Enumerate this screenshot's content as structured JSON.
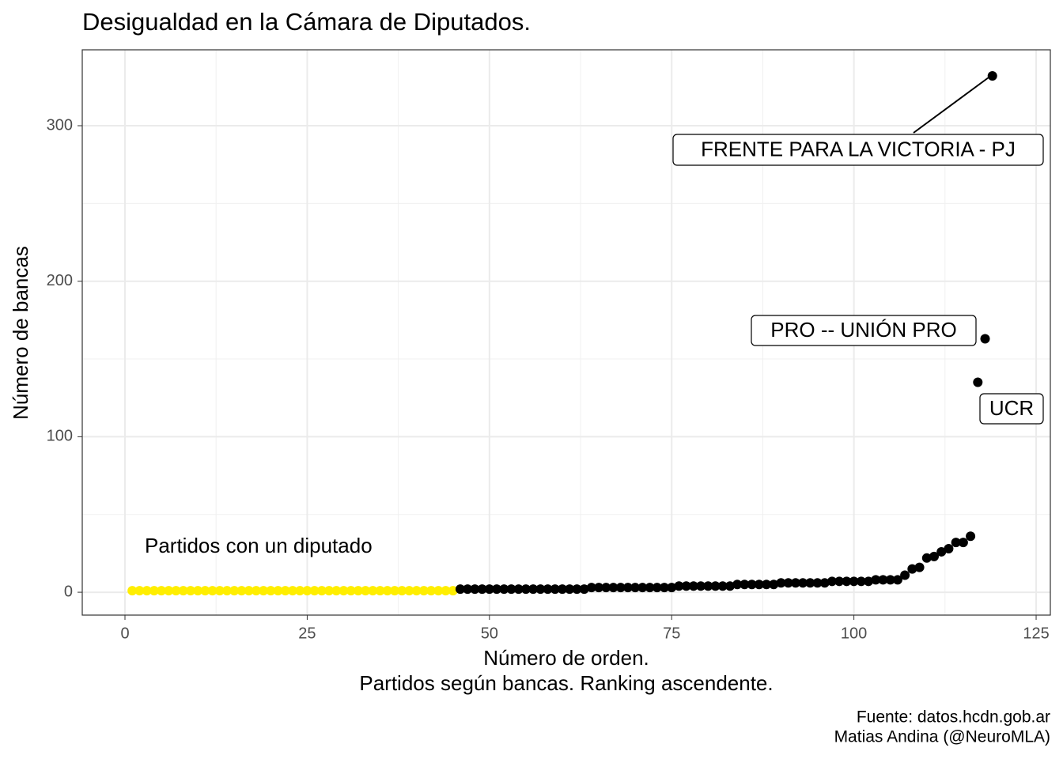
{
  "chart_data": {
    "type": "scatter",
    "title": "Desigualdad en la Cámara de Diputados.",
    "x_label": [
      "Número de orden.",
      "Partidos según bancas. Ranking ascendente."
    ],
    "y_label": "Número de bancas",
    "caption": [
      "Fuente: datos.hcdn.gob.ar",
      "Matias Andina (@NeuroMLA)"
    ],
    "annotations": [
      "FRENTE PARA LA VICTORIA - PJ",
      "PRO -- UNIÓN PRO",
      "UCR",
      "Partidos con un diputado"
    ],
    "grid": true,
    "xlim": [
      -5.86,
      126.95
    ],
    "ylim": [
      -14.7,
      348.8
    ],
    "xticks": [
      0,
      25,
      50,
      75,
      100,
      125
    ],
    "yticks": [
      0,
      100,
      200,
      300
    ],
    "series": [
      {
        "color": "#FFEE00",
        "x": [
          1,
          2,
          3,
          4,
          5,
          6,
          7,
          8,
          9,
          10,
          11,
          12,
          13,
          14,
          15,
          16,
          17,
          18,
          19,
          20,
          21,
          22,
          23,
          24,
          25,
          26,
          27,
          28,
          29,
          30,
          31,
          32,
          33,
          34,
          35,
          36,
          37,
          38,
          39,
          40,
          41,
          42,
          43,
          44,
          45
        ],
        "values": [
          1,
          1,
          1,
          1,
          1,
          1,
          1,
          1,
          1,
          1,
          1,
          1,
          1,
          1,
          1,
          1,
          1,
          1,
          1,
          1,
          1,
          1,
          1,
          1,
          1,
          1,
          1,
          1,
          1,
          1,
          1,
          1,
          1,
          1,
          1,
          1,
          1,
          1,
          1,
          1,
          1,
          1,
          1,
          1,
          1
        ]
      },
      {
        "color": "#000000",
        "x": [
          46,
          47,
          48,
          49,
          50,
          51,
          52,
          53,
          54,
          55,
          56,
          57,
          58,
          59,
          60,
          61,
          62,
          63,
          64,
          65,
          66,
          67,
          68,
          69,
          70,
          71,
          72,
          73,
          74,
          75,
          76,
          77,
          78,
          79,
          80,
          81,
          82,
          83,
          84,
          85,
          86,
          87,
          88,
          89,
          90,
          91,
          92,
          93,
          94,
          95,
          96,
          97,
          98,
          99,
          100,
          101,
          102,
          103,
          104,
          105,
          106,
          107,
          108,
          109,
          110,
          111,
          112,
          113,
          114,
          115,
          116,
          117,
          118,
          119
        ],
        "values": [
          2,
          2,
          2,
          2,
          2,
          2,
          2,
          2,
          2,
          2,
          2,
          2,
          2,
          2,
          2,
          2,
          2,
          2,
          3,
          3,
          3,
          3,
          3,
          3,
          3,
          3,
          3,
          3,
          3,
          3,
          4,
          4,
          4,
          4,
          4,
          4,
          4,
          4,
          5,
          5,
          5,
          5,
          5,
          5,
          6,
          6,
          6,
          6,
          6,
          6,
          6,
          7,
          7,
          7,
          7,
          7,
          7,
          8,
          8,
          8,
          8,
          11,
          15,
          16,
          22,
          23,
          26,
          28,
          32,
          32,
          36,
          135,
          163,
          332
        ]
      }
    ]
  }
}
